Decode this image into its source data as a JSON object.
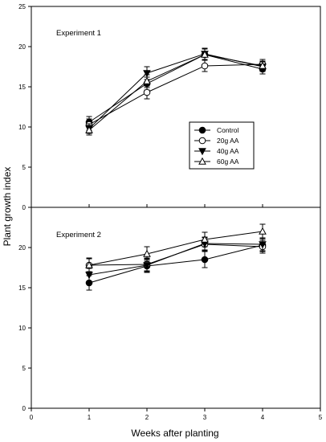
{
  "figure": {
    "ylabel": "Plant growth index",
    "xlabel": "Weeks after planting"
  },
  "chart_data": [
    {
      "type": "line",
      "panel_label": "Experiment 1",
      "x": [
        1,
        2,
        3,
        4
      ],
      "xlim": [
        0,
        5
      ],
      "xticks": [
        "0",
        "1",
        "2",
        "3",
        "4",
        "5"
      ],
      "ylim": [
        0,
        25
      ],
      "yticks": [
        "0",
        "5",
        "10",
        "15",
        "20",
        "25"
      ],
      "legend_position": "center-right",
      "series": [
        {
          "name": "Control",
          "marker": "filled-circle",
          "values": [
            10.6,
            15.4,
            19.0,
            17.2
          ],
          "errors": [
            0.7,
            0.8,
            0.7,
            0.6
          ]
        },
        {
          "name": "20g AA",
          "marker": "open-circle",
          "values": [
            10.3,
            14.3,
            17.6,
            17.8
          ],
          "errors": [
            0.7,
            0.8,
            0.7,
            0.6
          ]
        },
        {
          "name": "40g AA",
          "marker": "filled-triangle-down",
          "values": [
            9.8,
            16.7,
            19.1,
            17.5
          ],
          "errors": [
            0.6,
            0.8,
            0.7,
            0.6
          ]
        },
        {
          "name": "60g AA",
          "marker": "open-triangle-up",
          "values": [
            9.6,
            15.7,
            19.0,
            17.6
          ],
          "errors": [
            0.6,
            0.8,
            0.7,
            0.6
          ]
        }
      ]
    },
    {
      "type": "line",
      "panel_label": "Experiment 2",
      "x": [
        1,
        2,
        3,
        4
      ],
      "xlim": [
        0,
        5
      ],
      "xticks": [
        "0",
        "1",
        "2",
        "3",
        "4",
        "5"
      ],
      "ylim": [
        0,
        25
      ],
      "yticks": [
        "0",
        "5",
        "10",
        "15",
        "20"
      ],
      "series": [
        {
          "name": "Control",
          "marker": "filled-circle",
          "values": [
            15.6,
            17.7,
            18.5,
            20.3
          ],
          "errors": [
            0.9,
            0.8,
            1.0,
            0.8
          ]
        },
        {
          "name": "20g AA",
          "marker": "open-circle",
          "values": [
            17.8,
            17.9,
            20.4,
            20.1
          ],
          "errors": [
            0.8,
            0.8,
            0.8,
            0.8
          ]
        },
        {
          "name": "40g AA",
          "marker": "filled-triangle-down",
          "values": [
            16.6,
            17.8,
            20.5,
            20.4
          ],
          "errors": [
            0.8,
            0.8,
            0.8,
            0.8
          ]
        },
        {
          "name": "60g AA",
          "marker": "open-triangle-up",
          "values": [
            17.8,
            19.2,
            21.0,
            22.0
          ],
          "errors": [
            0.9,
            0.9,
            0.9,
            0.9
          ]
        }
      ]
    }
  ]
}
